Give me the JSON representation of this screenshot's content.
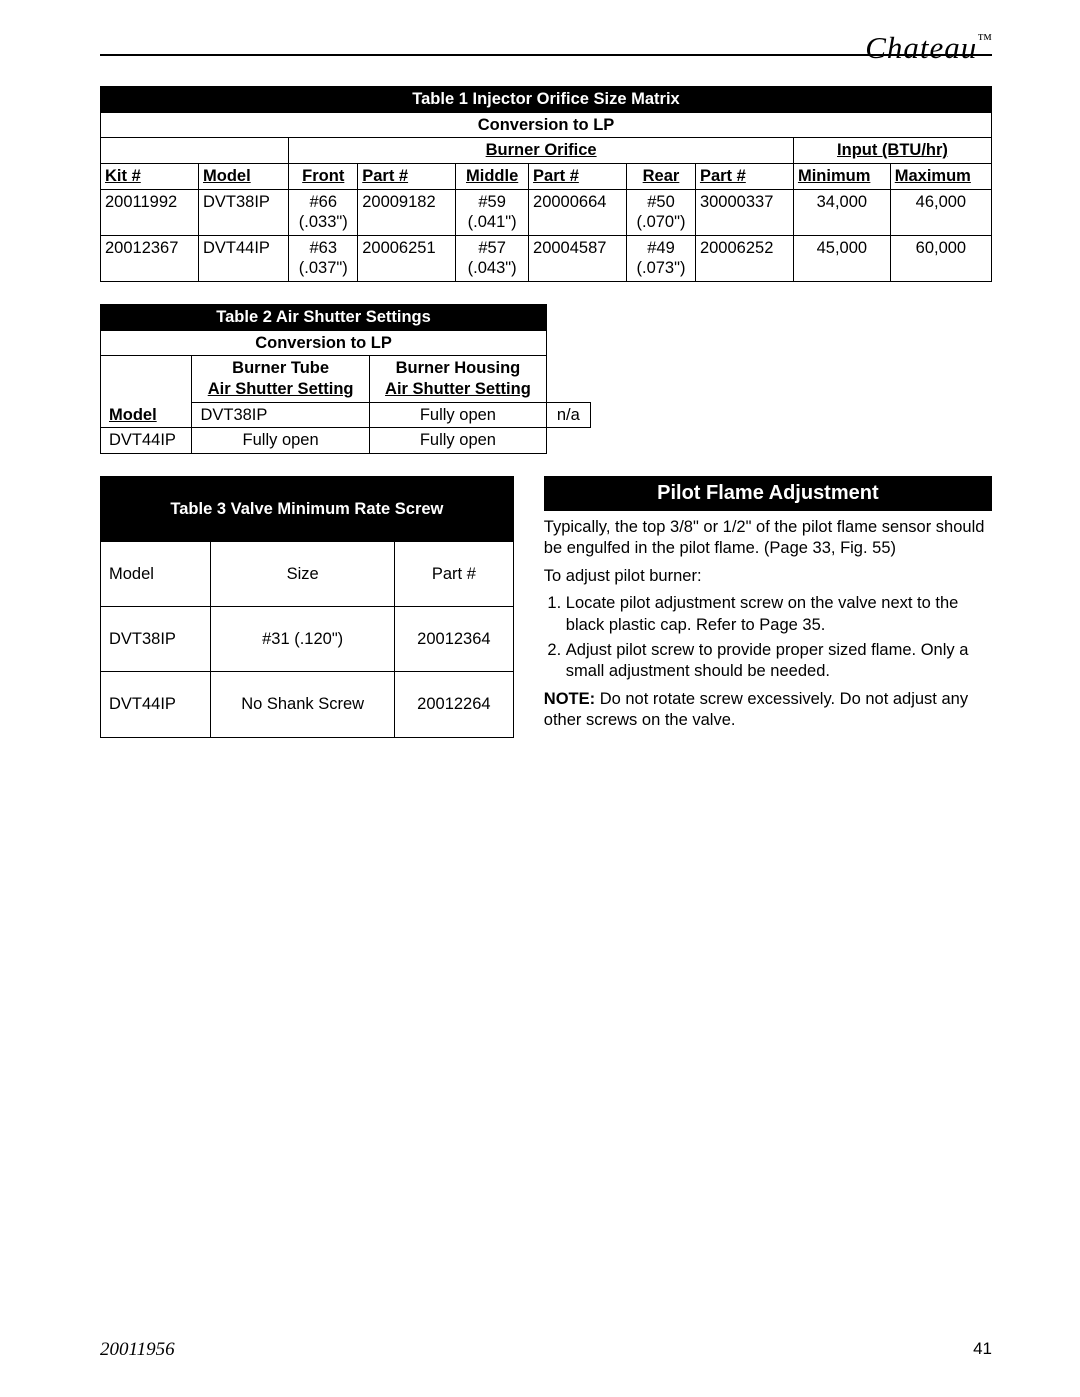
{
  "brand": {
    "name": "Chateau",
    "tm": "™"
  },
  "footer": {
    "doc": "20011956",
    "page": "41"
  },
  "table1": {
    "title": "Table 1  Injector Orifice Size Matrix",
    "conversion": "Conversion to LP",
    "group_burner": "Burner Orifice",
    "group_input": "Input (BTU/hr)",
    "headers": {
      "kit": "Kit #",
      "model": "Model",
      "front": "Front",
      "part1": "Part #",
      "middle": "Middle",
      "part2": "Part #",
      "rear": "Rear",
      "part3": "Part #",
      "min": "Minimum",
      "max": "Maximum"
    },
    "rows": [
      {
        "kit": "20011992",
        "model": "DVT38IP",
        "front": "#66",
        "front2": "(.033\")",
        "part1": "20009182",
        "middle": "#59",
        "middle2": "(.041\")",
        "part2": "20000664",
        "rear": "#50",
        "rear2": "(.070\")",
        "part3": "30000337",
        "min": "34,000",
        "max": "46,000"
      },
      {
        "kit": "20012367",
        "model": "DVT44IP",
        "front": "#63",
        "front2": "(.037\")",
        "part1": "20006251",
        "middle": "#57",
        "middle2": "(.043\")",
        "part2": "20004587",
        "rear": "#49",
        "rear2": "(.073\")",
        "part3": "20006252",
        "min": "45,000",
        "max": "60,000"
      }
    ]
  },
  "table2": {
    "title": "Table 2 Air Shutter Settings",
    "conversion": "Conversion to LP",
    "headers": {
      "model": "Model",
      "tube1": "Burner Tube",
      "tube2": "Air Shutter Setting",
      "housing1": "Burner Housing",
      "housing2": "Air Shutter Setting"
    },
    "rows": [
      {
        "model": "DVT38IP",
        "tube": "Fully open",
        "housing": "n/a"
      },
      {
        "model": "DVT44IP",
        "tube": "Fully open",
        "housing": "Fully open"
      }
    ]
  },
  "table3": {
    "title": "Table 3 Valve Minimum Rate Screw",
    "headers": {
      "model": "Model",
      "size": "Size",
      "part": "Part #"
    },
    "rows": [
      {
        "model": "DVT38IP",
        "size": "#31 (.120\")",
        "part": "20012364"
      },
      {
        "model": "DVT44IP",
        "size": "No Shank Screw",
        "part": "20012264"
      }
    ]
  },
  "pilot": {
    "title": "Pilot Flame Adjustment",
    "p1": "Typically, the top 3/8\" or 1/2\" of the pilot flame sensor should be engulfed in the pilot flame. (Page 33, Fig. 55)",
    "p2": "To adjust pilot burner:",
    "li1": "Locate pilot adjustment screw on the valve next to the black plastic cap. Refer to Page 35.",
    "li2": "Adjust pilot screw to provide proper sized flame. Only a small adjustment should be needed.",
    "note_label": "NOTE:",
    "note": " Do not rotate screw excessively. Do not adjust any other screws on the valve."
  }
}
